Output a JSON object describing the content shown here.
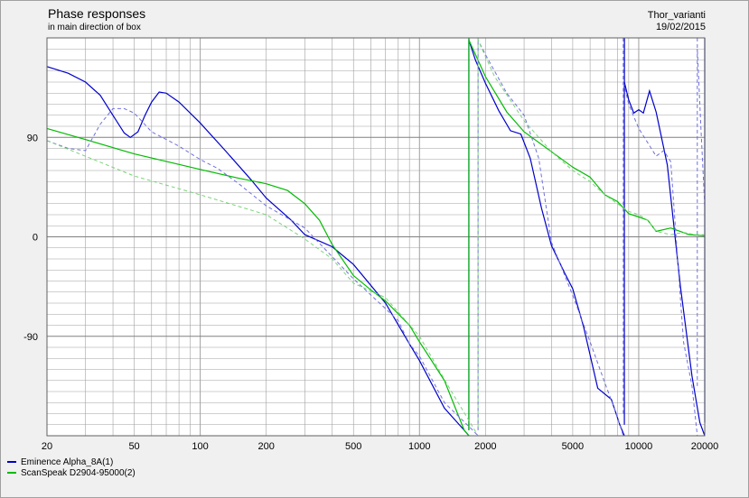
{
  "header": {
    "title": "Phase responses",
    "subtitle": "in main direction of box",
    "project": "Thor_varianti",
    "date": "19/02/2015"
  },
  "colors": {
    "series1": "#0000cc",
    "series2": "#00bb00",
    "series1_ref": "#6f6fe0",
    "series2_ref": "#7ad27a",
    "grid": "#a0a0a0",
    "plot_bg": "#ffffff"
  },
  "chart_data": {
    "type": "line",
    "x_scale": "log",
    "xlim": [
      20,
      20000
    ],
    "ylim": [
      -180,
      180
    ],
    "x_ticks": [
      20,
      50,
      100,
      200,
      500,
      1000,
      2000,
      5000,
      10000,
      20000
    ],
    "y_ticks": [
      90,
      0,
      -90
    ],
    "grid": true,
    "legend": "bottom-left",
    "series": [
      {
        "name": "Eminence Alpha_8A(1)",
        "style": "solid",
        "color": "#0000cc",
        "points": [
          [
            20,
            154
          ],
          [
            25,
            148
          ],
          [
            30,
            140
          ],
          [
            35,
            128
          ],
          [
            40,
            110
          ],
          [
            45,
            94
          ],
          [
            48,
            90
          ],
          [
            52,
            95
          ],
          [
            56,
            110
          ],
          [
            60,
            122
          ],
          [
            65,
            131
          ],
          [
            70,
            130
          ],
          [
            80,
            122
          ],
          [
            100,
            103
          ],
          [
            130,
            78
          ],
          [
            170,
            52
          ],
          [
            200,
            35
          ],
          [
            260,
            15
          ],
          [
            300,
            2
          ],
          [
            400,
            -9
          ],
          [
            500,
            -25
          ],
          [
            700,
            -60
          ],
          [
            900,
            -97
          ],
          [
            1000,
            -112
          ],
          [
            1300,
            -155
          ],
          [
            1600,
            -175
          ],
          [
            1680,
            178
          ],
          [
            1800,
            160
          ],
          [
            2000,
            139
          ],
          [
            2300,
            114
          ],
          [
            2600,
            96
          ],
          [
            2900,
            93
          ],
          [
            3200,
            71
          ],
          [
            3600,
            26
          ],
          [
            4000,
            -8
          ],
          [
            4600,
            -33
          ],
          [
            5000,
            -47
          ],
          [
            5600,
            -81
          ],
          [
            6500,
            -137
          ],
          [
            7500,
            -147
          ],
          [
            8200,
            -170
          ],
          [
            8600,
            140
          ],
          [
            9000,
            124
          ],
          [
            9500,
            112
          ],
          [
            10000,
            115
          ],
          [
            10500,
            112
          ],
          [
            11200,
            132
          ],
          [
            12000,
            113
          ],
          [
            13500,
            65
          ],
          [
            15500,
            -45
          ],
          [
            17500,
            -126
          ],
          [
            19000,
            -168
          ],
          [
            20000,
            158
          ]
        ]
      },
      {
        "name": "ScanSpeak D2904-95000(2)",
        "style": "solid",
        "color": "#00bb00",
        "points": [
          [
            20,
            98
          ],
          [
            30,
            88
          ],
          [
            50,
            75
          ],
          [
            100,
            61
          ],
          [
            150,
            53
          ],
          [
            200,
            48
          ],
          [
            250,
            42
          ],
          [
            300,
            30
          ],
          [
            350,
            15
          ],
          [
            400,
            -7
          ],
          [
            500,
            -35
          ],
          [
            600,
            -48
          ],
          [
            700,
            -58
          ],
          [
            900,
            -80
          ],
          [
            1000,
            -95
          ],
          [
            1300,
            -130
          ],
          [
            1600,
            -175
          ],
          [
            1680,
            178
          ],
          [
            2000,
            145
          ],
          [
            2500,
            113
          ],
          [
            3000,
            95
          ],
          [
            4000,
            77
          ],
          [
            5000,
            63
          ],
          [
            6000,
            54
          ],
          [
            7000,
            38
          ],
          [
            8000,
            32
          ],
          [
            9000,
            21
          ],
          [
            10000,
            18
          ],
          [
            11000,
            15
          ],
          [
            12000,
            5
          ],
          [
            14000,
            8
          ],
          [
            17000,
            2
          ],
          [
            20000,
            1
          ]
        ]
      },
      {
        "name": "",
        "style": "dashed",
        "color": "#6f6fe0",
        "points": [
          [
            20,
            87
          ],
          [
            25,
            80
          ],
          [
            30,
            78
          ],
          [
            35,
            102
          ],
          [
            40,
            116
          ],
          [
            45,
            116
          ],
          [
            50,
            112
          ],
          [
            60,
            95
          ],
          [
            80,
            82
          ],
          [
            100,
            70
          ],
          [
            120,
            62
          ],
          [
            150,
            48
          ],
          [
            200,
            28
          ],
          [
            300,
            8
          ],
          [
            400,
            -18
          ],
          [
            500,
            -38
          ],
          [
            700,
            -65
          ],
          [
            800,
            -76
          ],
          [
            900,
            -97
          ],
          [
            1000,
            -108
          ],
          [
            1300,
            -150
          ],
          [
            1750,
            -175
          ],
          [
            1850,
            178
          ],
          [
            2000,
            165
          ],
          [
            2500,
            130
          ],
          [
            3000,
            110
          ],
          [
            3500,
            71
          ],
          [
            4000,
            -5
          ],
          [
            5000,
            -53
          ],
          [
            6000,
            -95
          ],
          [
            7000,
            -132
          ],
          [
            7900,
            -160
          ],
          [
            8500,
            141
          ],
          [
            9000,
            120
          ],
          [
            10000,
            98
          ],
          [
            11000,
            85
          ],
          [
            12000,
            73
          ],
          [
            13000,
            78
          ],
          [
            14000,
            68
          ],
          [
            16000,
            -95
          ],
          [
            17500,
            -135
          ],
          [
            18500,
            170
          ],
          [
            19200,
            100
          ],
          [
            20000,
            28
          ]
        ]
      },
      {
        "name": "",
        "style": "dashed",
        "color": "#7ad27a",
        "points": [
          [
            20,
            87
          ],
          [
            50,
            55
          ],
          [
            100,
            38
          ],
          [
            200,
            20
          ],
          [
            300,
            -2
          ],
          [
            400,
            -20
          ],
          [
            500,
            -42
          ],
          [
            700,
            -55
          ],
          [
            1000,
            -90
          ],
          [
            1400,
            -140
          ],
          [
            1750,
            -172
          ],
          [
            1850,
            178
          ],
          [
            2200,
            145
          ],
          [
            3000,
            105
          ],
          [
            4000,
            77
          ],
          [
            5000,
            60
          ],
          [
            6000,
            50
          ],
          [
            7000,
            38
          ],
          [
            8000,
            30
          ],
          [
            9000,
            23
          ],
          [
            10000,
            20
          ],
          [
            11000,
            15
          ],
          [
            12000,
            5
          ],
          [
            14000,
            2
          ],
          [
            16000,
            4
          ],
          [
            18000,
            2
          ],
          [
            20000,
            2
          ]
        ]
      }
    ]
  }
}
